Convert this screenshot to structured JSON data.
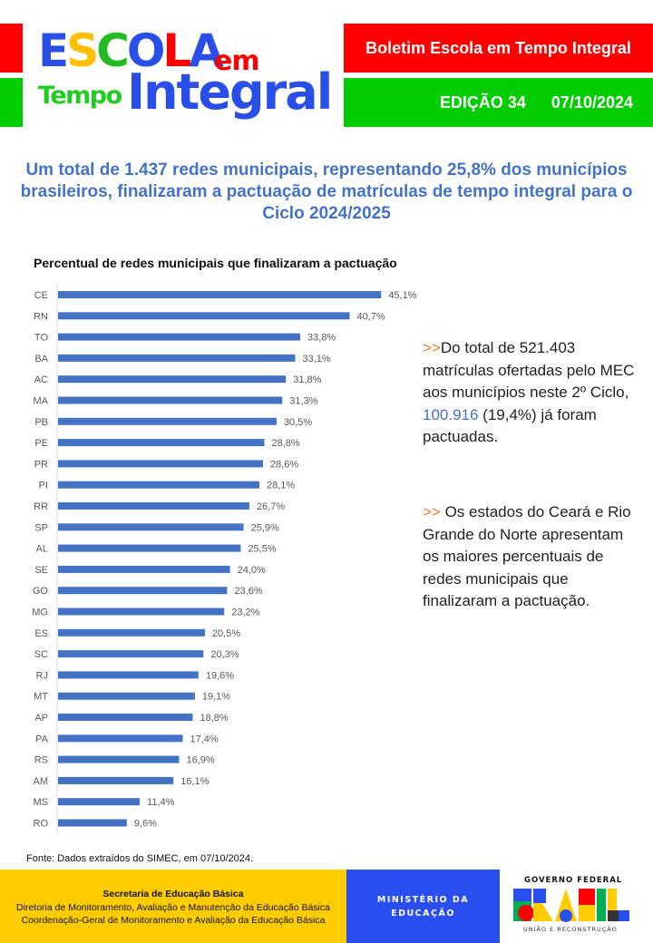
{
  "header": {
    "logo": {
      "escola_letters": [
        {
          "char": "E",
          "color": "#2a4fe8"
        },
        {
          "char": "S",
          "color": "#ffc000"
        },
        {
          "char": "C",
          "color": "#22bb22"
        },
        {
          "char": "O",
          "color": "#2a4fe8"
        },
        {
          "char": "L",
          "color": "#ff0000"
        },
        {
          "char": "A",
          "color": "#2a4fe8"
        }
      ],
      "em": "em",
      "tempo": "Tempo",
      "integral": "Integral"
    },
    "bulletin_title": "Boletim Escola em Tempo Integral",
    "edition": "EDIÇÃO 34",
    "date": "07/10/2024"
  },
  "headline": "Um total de 1.437 redes municipais, representando 25,8% dos municípios brasileiros, finalizaram a pactuação de matrículas de tempo integral para o Ciclo 2024/2025",
  "notes": [
    {
      "arrow": ">>",
      "text_before": "Do total de 521.403 matrículas ofertadas pelo MEC aos municípios neste 2º Ciclo, ",
      "highlight": "100.916",
      "text_after": " (19,4%) já foram pactuadas."
    },
    {
      "arrow": ">>",
      "text": " Os estados do Ceará e Rio Grande do Norte apresentam os maiores percentuais de redes municipais que finalizaram a pactuação."
    }
  ],
  "chart_data": {
    "type": "bar",
    "orientation": "horizontal",
    "title": "Percentual de redes municipais que finalizaram a pactuação",
    "xlabel": "",
    "ylabel": "",
    "unit": "%",
    "bar_color": "#4472c4",
    "grid": false,
    "xlim": [
      0,
      50
    ],
    "categories": [
      "CE",
      "RN",
      "TO",
      "BA",
      "AC",
      "MA",
      "PB",
      "PE",
      "PR",
      "PI",
      "RR",
      "SP",
      "AL",
      "SE",
      "GO",
      "MG",
      "ES",
      "SC",
      "RJ",
      "MT",
      "AP",
      "PA",
      "RS",
      "AM",
      "MS",
      "RO"
    ],
    "values": [
      45.1,
      40.7,
      33.8,
      33.1,
      31.8,
      31.3,
      30.5,
      28.8,
      28.6,
      28.1,
      26.7,
      25.9,
      25.5,
      24.0,
      23.6,
      23.2,
      20.5,
      20.3,
      19.6,
      19.1,
      18.8,
      17.4,
      16.9,
      16.1,
      11.4,
      9.6
    ],
    "labels": [
      "45,1%",
      "40,7%",
      "33,8%",
      "33,1%",
      "31,8%",
      "31,3%",
      "30,5%",
      "28,8%",
      "28,6%",
      "28,1%",
      "26,7%",
      "25,9%",
      "25,5%",
      "24,0%",
      "23,6%",
      "23,2%",
      "20,5%",
      "20,3%",
      "19,6%",
      "19,1%",
      "18,8%",
      "17,4%",
      "16,9%",
      "16,1%",
      "11,4%",
      "9,6%"
    ]
  },
  "source": "Fonte: Dados extraídos do SIMEC, em 07/10/2024.",
  "footer": {
    "secretaria": "Secretaria de Educação Básica",
    "diretoria": "Diretoria de Monitoramento, Avaliação e Manutenção da Educação Básica",
    "coordenacao": "Coordenação-Geral de Monitoramento e Avaliação da Educação Básica",
    "ministerio_line1": "MINISTÉRIO DA",
    "ministerio_line2": "EDUCAÇÃO",
    "gov_top": "GOVERNO FEDERAL",
    "gov_bottom": "UNIÃO E RECONSTRUÇÃO",
    "gov_word": "BRASIL"
  }
}
